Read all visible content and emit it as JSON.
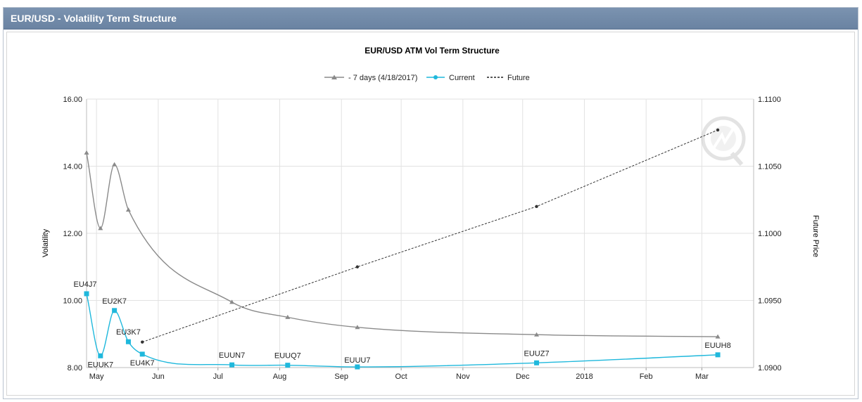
{
  "panel": {
    "title": "EUR/USD - Volatility Term Structure"
  },
  "chart_data": {
    "type": "line",
    "title": "EUR/USD ATM Vol Term Structure",
    "ylabel": "Volatility",
    "y2label": "Future Price",
    "ylim": [
      8.0,
      16.0
    ],
    "y2lim": [
      1.09,
      1.11
    ],
    "yticks": [
      "8.00",
      "10.00",
      "12.00",
      "14.00",
      "16.00"
    ],
    "y2ticks": [
      "1.0900",
      "1.0950",
      "1.1000",
      "1.1050",
      "1.1100"
    ],
    "xlim": [
      "2017-04-26",
      "2018-03-27"
    ],
    "xticks": [
      {
        "label": "May",
        "date": "2017-05-01"
      },
      {
        "label": "Jun",
        "date": "2017-06-01"
      },
      {
        "label": "Jul",
        "date": "2017-07-01"
      },
      {
        "label": "Aug",
        "date": "2017-08-01"
      },
      {
        "label": "Sep",
        "date": "2017-09-01"
      },
      {
        "label": "Oct",
        "date": "2017-10-01"
      },
      {
        "label": "Nov",
        "date": "2017-11-01"
      },
      {
        "label": "Dec",
        "date": "2017-12-01"
      },
      {
        "label": "2018",
        "date": "2018-01-01"
      },
      {
        "label": "Feb",
        "date": "2018-02-01"
      },
      {
        "label": "Mar",
        "date": "2018-03-01"
      }
    ],
    "grid": true,
    "legend_position": "top-center",
    "series": [
      {
        "name": "- 7 days (4/18/2017)",
        "color": "#8a8a8a",
        "marker": "triangle",
        "axis": "left",
        "points": [
          {
            "x": "2017-04-26",
            "y": 14.4
          },
          {
            "x": "2017-05-03",
            "y": 12.15
          },
          {
            "x": "2017-05-10",
            "y": 14.05
          },
          {
            "x": "2017-05-17",
            "y": 12.7
          },
          {
            "x": "2017-07-08",
            "y": 9.95
          },
          {
            "x": "2017-08-05",
            "y": 9.5
          },
          {
            "x": "2017-09-09",
            "y": 9.2
          },
          {
            "x": "2017-12-08",
            "y": 8.98
          },
          {
            "x": "2018-03-09",
            "y": 8.92
          }
        ]
      },
      {
        "name": "Current",
        "color": "#1fb8dc",
        "marker": "square",
        "axis": "left",
        "points": [
          {
            "x": "2017-04-26",
            "y": 10.2,
            "label": "EU4J7"
          },
          {
            "x": "2017-05-03",
            "y": 8.35,
            "label": "EUUK7"
          },
          {
            "x": "2017-05-10",
            "y": 9.7,
            "label": "EU2K7"
          },
          {
            "x": "2017-05-17",
            "y": 8.77,
            "label": "EU3K7"
          },
          {
            "x": "2017-05-24",
            "y": 8.4,
            "label": "EU4K7"
          },
          {
            "x": "2017-07-08",
            "y": 8.08,
            "label": "EUUN7"
          },
          {
            "x": "2017-08-05",
            "y": 8.07,
            "label": "EUUQ7"
          },
          {
            "x": "2017-09-09",
            "y": 8.02,
            "label": "EUUU7"
          },
          {
            "x": "2017-12-08",
            "y": 8.14,
            "label": "EUUZ7"
          },
          {
            "x": "2018-03-09",
            "y": 8.38,
            "label": "EUUH8"
          }
        ]
      },
      {
        "name": "Future",
        "color": "#333333",
        "marker": "dot",
        "dashed": true,
        "axis": "right",
        "points": [
          {
            "x": "2017-05-24",
            "y": 1.0919
          },
          {
            "x": "2017-09-09",
            "y": 1.0975
          },
          {
            "x": "2017-12-08",
            "y": 1.102
          },
          {
            "x": "2018-03-09",
            "y": 1.1077
          }
        ]
      }
    ]
  }
}
